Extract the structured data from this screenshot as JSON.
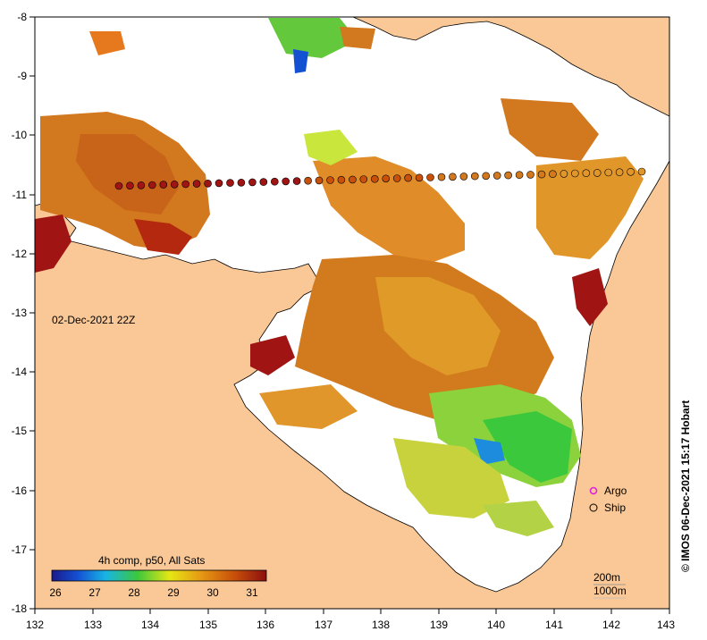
{
  "map": {
    "date_label": "02-Dec-2021 22Z",
    "credit": "© IMOS 06-Dec-2021 15:17 Hobart",
    "x_ticks": [
      "132",
      "133",
      "134",
      "135",
      "136",
      "137",
      "138",
      "139",
      "140",
      "141",
      "142",
      "143"
    ],
    "y_ticks": [
      "-8",
      "-9",
      "-10",
      "-11",
      "-12",
      "-13",
      "-14",
      "-15",
      "-16",
      "-17",
      "-18"
    ],
    "legend": {
      "title": "4h comp, p50, All Sats",
      "ticks": [
        "26",
        "27",
        "28",
        "29",
        "30",
        "31"
      ],
      "argo_label": "Argo",
      "ship_label": "Ship",
      "contour_200": "200m",
      "contour_1000": "1000m"
    },
    "colors": {
      "land": "#f9c896",
      "sst_low": "#1a1a8c",
      "sst_mid": "#3cc83c",
      "sst_high": "#8c0f0f",
      "argo": "#e020e0"
    }
  }
}
